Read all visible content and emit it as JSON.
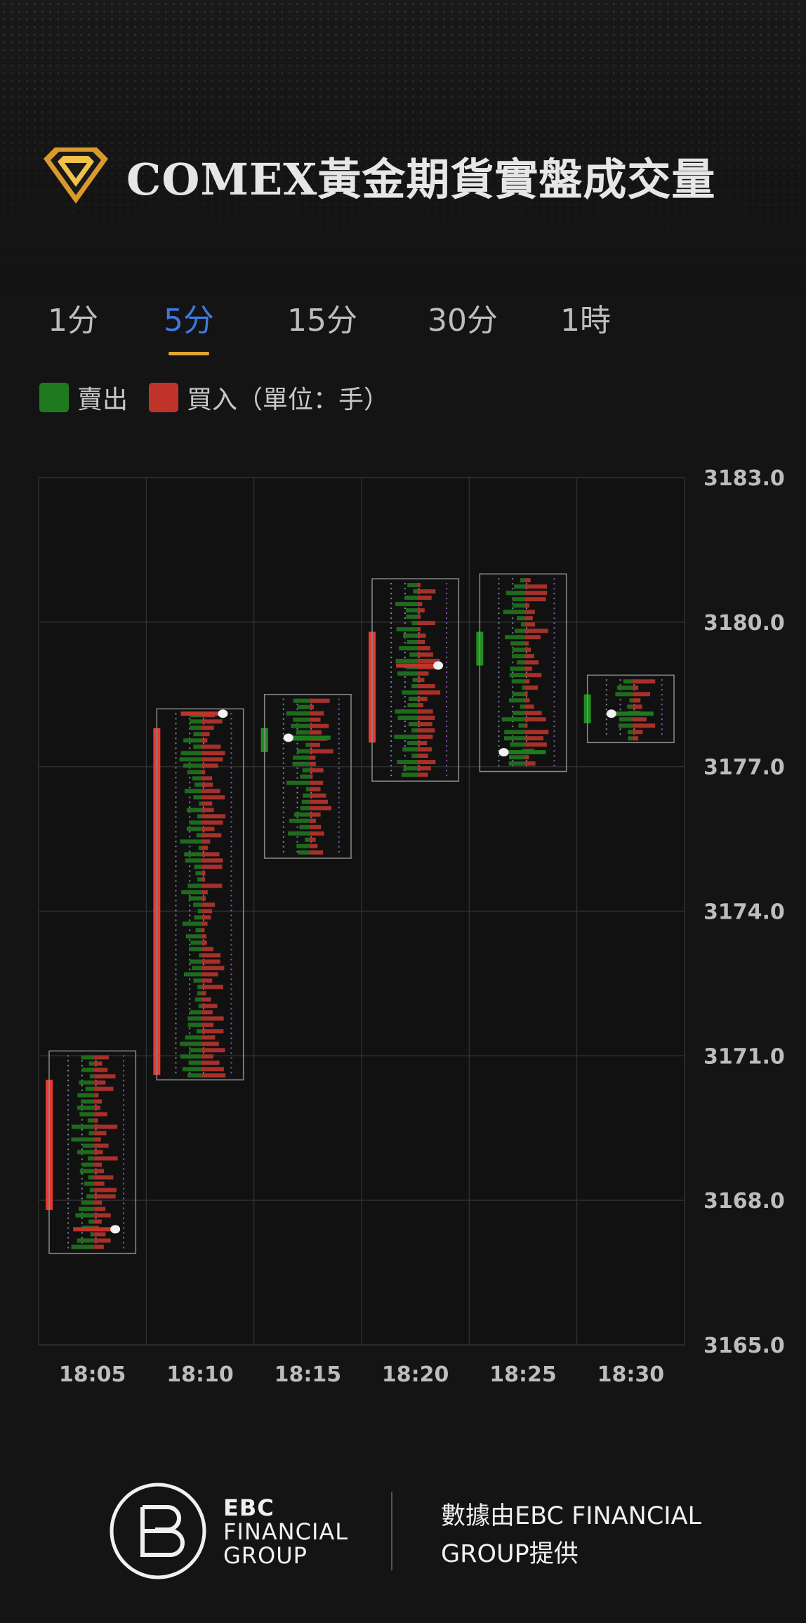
{
  "title": "COMEX黃金期貨實盤成交量",
  "tabs": [
    {
      "label": "1分",
      "active": false
    },
    {
      "label": "5分",
      "active": true
    },
    {
      "label": "15分",
      "active": false
    },
    {
      "label": "30分",
      "active": false
    },
    {
      "label": "1時",
      "active": false
    }
  ],
  "legend": {
    "sell_label": "賣出",
    "buy_label": "買入（單位：手）",
    "sell_color": "#1e7a1e",
    "buy_color": "#c0332b"
  },
  "chart_data": {
    "type": "candlestick-footprint",
    "categories": [
      "18:05",
      "18:10",
      "18:15",
      "18:20",
      "18:25",
      "18:30"
    ],
    "y_ticks": [
      "3183.0",
      "3180.0",
      "3177.0",
      "3174.0",
      "3171.0",
      "3168.0",
      "3165.0"
    ],
    "ylim": [
      3165,
      3183
    ],
    "grid": true,
    "candles": [
      {
        "time": "18:05",
        "open": 3167.8,
        "close": 3170.5,
        "low": 3166.9,
        "high": 3171.1,
        "direction": "up",
        "poc": 3167.4
      },
      {
        "time": "18:10",
        "open": 3170.6,
        "close": 3177.8,
        "low": 3170.5,
        "high": 3178.2,
        "direction": "up",
        "poc": 3178.1
      },
      {
        "time": "18:15",
        "open": 3177.8,
        "close": 3177.3,
        "low": 3175.1,
        "high": 3178.5,
        "direction": "down",
        "poc": 3177.6
      },
      {
        "time": "18:20",
        "open": 3177.5,
        "close": 3179.8,
        "low": 3176.7,
        "high": 3180.9,
        "direction": "up",
        "poc": 3179.1
      },
      {
        "time": "18:25",
        "open": 3179.8,
        "close": 3179.1,
        "low": 3176.9,
        "high": 3181.0,
        "direction": "down",
        "poc": 3177.3
      },
      {
        "time": "18:30",
        "open": 3178.5,
        "close": 3177.9,
        "low": 3177.5,
        "high": 3178.9,
        "direction": "down",
        "poc": 3178.1
      }
    ]
  },
  "footer": {
    "brand_line1": "EBC",
    "brand_line2": "FINANCIAL",
    "brand_line3": "GROUP",
    "provider_text": "數據由EBC FINANCIAL GROUP提供"
  }
}
